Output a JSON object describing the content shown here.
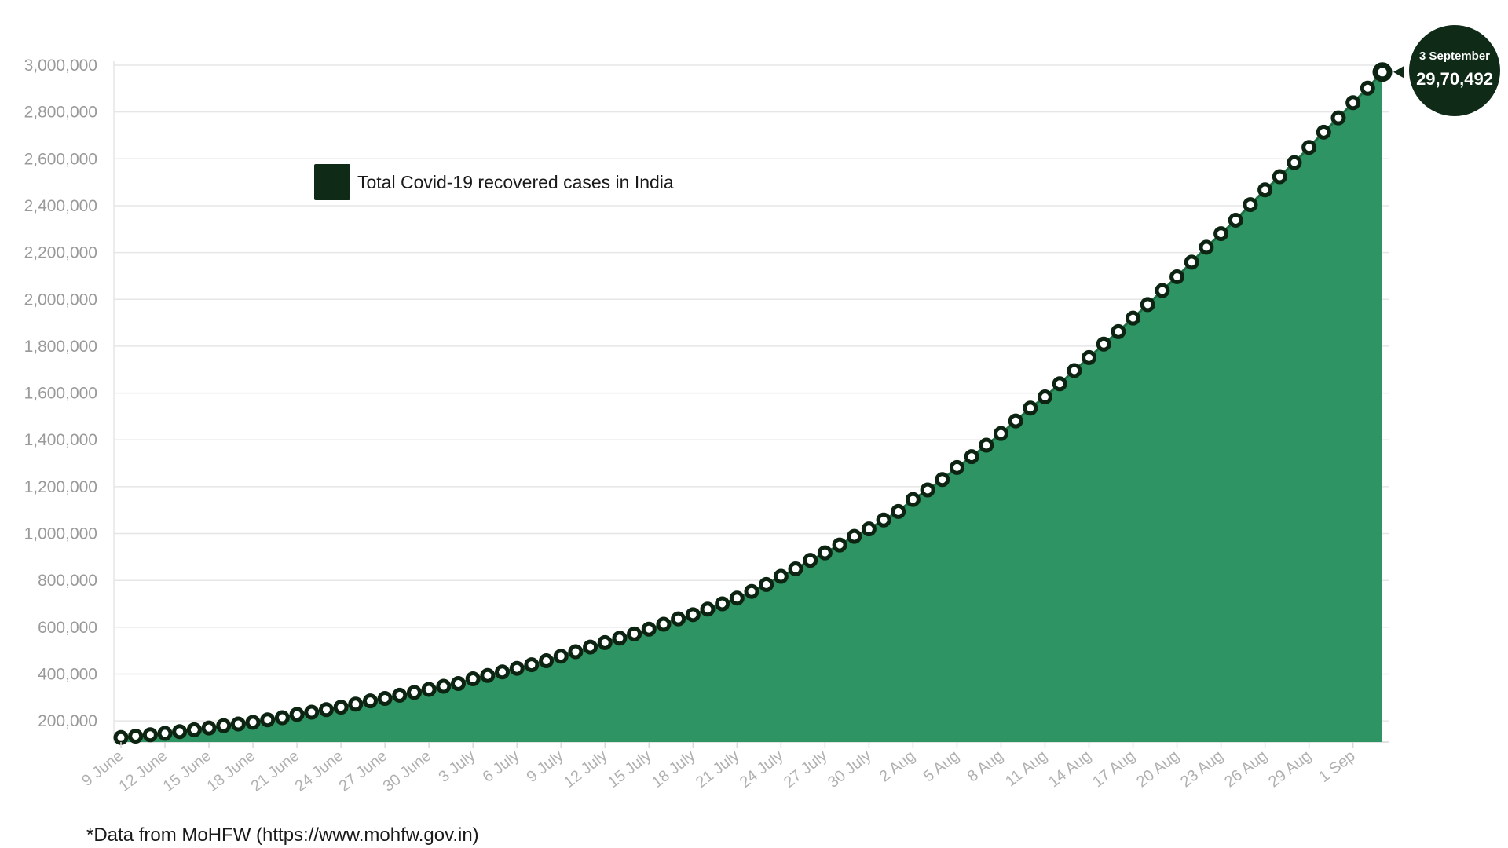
{
  "colors": {
    "area": "#2e9463",
    "line": "#1f6e44",
    "marker": "#0e2412",
    "markerHole": "#ffffff",
    "grid": "#e6e6e6",
    "legend": "#0f2a16",
    "callout": "#0f2a16"
  },
  "chart_data": {
    "type": "area",
    "series": [
      {
        "name": "Total Covid-19 recovered cases in India",
        "start_date": "2020-06-09",
        "values": [
          129215,
          135206,
          141029,
          147195,
          154330,
          162379,
          169798,
          180013,
          186934,
          194324,
          204711,
          213830,
          227756,
          237196,
          248190,
          258685,
          271697,
          285637,
          295881,
          309713,
          321723,
          334821,
          347978,
          359860,
          379892,
          394227,
          409083,
          424433,
          439948,
          456831,
          476378,
          495513,
          515386,
          534621,
          553471,
          571460,
          592032,
          612815,
          635757,
          653751,
          677422,
          700087,
          724578,
          753050,
          782607,
          817208,
          849432,
          885577,
          917568,
          951166,
          988029,
          1019735,
          1057805,
          1094374,
          1145629,
          1186203,
          1230509,
          1282215,
          1328336,
          1377384,
          1427005,
          1480884,
          1535743,
          1583489,
          1639599,
          1695982,
          1751555,
          1808936,
          1862258,
          1919842,
          1977779,
          2037870,
          2096664,
          2158946,
          2222577,
          2280566,
          2338035,
          2404585,
          2467758,
          2523771,
          2583948,
          2648998,
          2713933,
          2774801,
          2839882,
          2901908,
          2970492
        ]
      }
    ],
    "x_ticks": [
      "9 June",
      "12 June",
      "15 June",
      "18 June",
      "21 June",
      "24 June",
      "27 June",
      "30 June",
      "3 July",
      "6 July",
      "9 July",
      "12 July",
      "15 July",
      "18 July",
      "21 July",
      "24 July",
      "27 July",
      "30 July",
      "2 Aug",
      "5 Aug",
      "8 Aug",
      "11 Aug",
      "14 Aug",
      "17 Aug",
      "20 Aug",
      "23 Aug",
      "26 Aug",
      "29 Aug",
      "1 Sep"
    ],
    "y_ticks": [
      "200,000",
      "400,000",
      "600,000",
      "800,000",
      "1,000,000",
      "1,200,000",
      "1,400,000",
      "1,600,000",
      "1,800,000",
      "2,000,000",
      "2,200,000",
      "2,400,000",
      "2,600,000",
      "2,800,000",
      "3,000,000"
    ],
    "y_tick_values": [
      200000,
      400000,
      600000,
      800000,
      1000000,
      1200000,
      1400000,
      1600000,
      1800000,
      2000000,
      2200000,
      2400000,
      2600000,
      2800000,
      3000000
    ],
    "ylim": [
      110000,
      3000000
    ],
    "grid": true,
    "legend": {
      "label": "Total Covid-19 recovered cases in India",
      "placement": "top-left"
    },
    "callout": {
      "date": "3 September",
      "value": "29,70,492"
    }
  },
  "footnote": "*Data from MoHFW (https://www.mohfw.gov.in)"
}
